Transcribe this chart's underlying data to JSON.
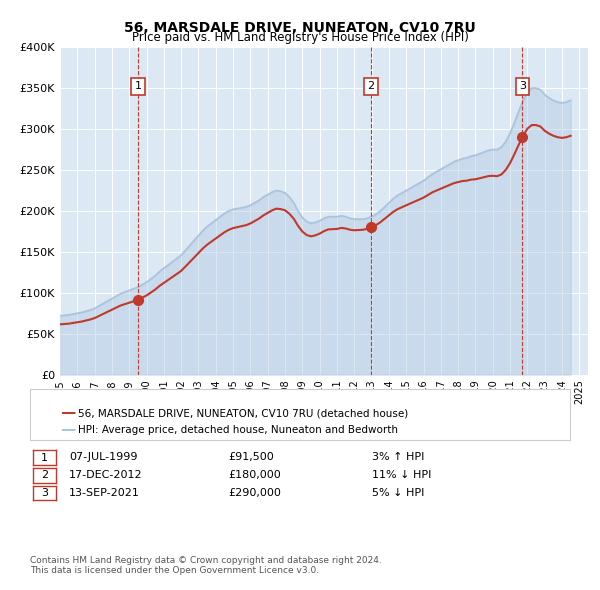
{
  "title": "56, MARSDALE DRIVE, NUNEATON, CV10 7RU",
  "subtitle": "Price paid vs. HM Land Registry's House Price Index (HPI)",
  "hpi_color": "#aac4dd",
  "price_color": "#c0392b",
  "background_color": "#dce9f5",
  "plot_bg": "#dce9f5",
  "ylim": [
    0,
    400000
  ],
  "yticks": [
    0,
    50000,
    100000,
    150000,
    200000,
    250000,
    300000,
    350000,
    400000
  ],
  "ytick_labels": [
    "£0",
    "£50K",
    "£100K",
    "£150K",
    "£200K",
    "£250K",
    "£300K",
    "£350K",
    "£400K"
  ],
  "xlim_start": 1995.0,
  "xlim_end": 2025.5,
  "sale_dates": [
    1999.52,
    2012.96,
    2021.71
  ],
  "sale_prices": [
    91500,
    180000,
    290000
  ],
  "sale_labels": [
    "1",
    "2",
    "3"
  ],
  "legend_price_label": "56, MARSDALE DRIVE, NUNEATON, CV10 7RU (detached house)",
  "legend_hpi_label": "HPI: Average price, detached house, Nuneaton and Bedworth",
  "table_rows": [
    {
      "num": "1",
      "date": "07-JUL-1999",
      "price": "£91,500",
      "change": "3% ↑ HPI"
    },
    {
      "num": "2",
      "date": "17-DEC-2012",
      "price": "£180,000",
      "change": "11% ↓ HPI"
    },
    {
      "num": "3",
      "date": "13-SEP-2021",
      "price": "£290,000",
      "change": "5% ↓ HPI"
    }
  ],
  "footer": "Contains HM Land Registry data © Crown copyright and database right 2024.\nThis data is licensed under the Open Government Licence v3.0.",
  "hpi_data_x": [
    1995.0,
    1995.25,
    1995.5,
    1995.75,
    1996.0,
    1996.25,
    1996.5,
    1996.75,
    1997.0,
    1997.25,
    1997.5,
    1997.75,
    1998.0,
    1998.25,
    1998.5,
    1998.75,
    1999.0,
    1999.25,
    1999.5,
    1999.75,
    2000.0,
    2000.25,
    2000.5,
    2000.75,
    2001.0,
    2001.25,
    2001.5,
    2001.75,
    2002.0,
    2002.25,
    2002.5,
    2002.75,
    2003.0,
    2003.25,
    2003.5,
    2003.75,
    2004.0,
    2004.25,
    2004.5,
    2004.75,
    2005.0,
    2005.25,
    2005.5,
    2005.75,
    2006.0,
    2006.25,
    2006.5,
    2006.75,
    2007.0,
    2007.25,
    2007.5,
    2007.75,
    2008.0,
    2008.25,
    2008.5,
    2008.75,
    2009.0,
    2009.25,
    2009.5,
    2009.75,
    2010.0,
    2010.25,
    2010.5,
    2010.75,
    2011.0,
    2011.25,
    2011.5,
    2011.75,
    2012.0,
    2012.25,
    2012.5,
    2012.75,
    2013.0,
    2013.25,
    2013.5,
    2013.75,
    2014.0,
    2014.25,
    2014.5,
    2014.75,
    2015.0,
    2015.25,
    2015.5,
    2015.75,
    2016.0,
    2016.25,
    2016.5,
    2016.75,
    2017.0,
    2017.25,
    2017.5,
    2017.75,
    2018.0,
    2018.25,
    2018.5,
    2018.75,
    2019.0,
    2019.25,
    2019.5,
    2019.75,
    2020.0,
    2020.25,
    2020.5,
    2020.75,
    2021.0,
    2021.25,
    2021.5,
    2021.75,
    2022.0,
    2022.25,
    2022.5,
    2022.75,
    2023.0,
    2023.25,
    2023.5,
    2023.75,
    2024.0,
    2024.25,
    2024.5
  ],
  "hpi_data_y": [
    72000,
    72500,
    73000,
    74000,
    75000,
    76000,
    77500,
    79000,
    81000,
    84000,
    87000,
    90000,
    93000,
    96000,
    99000,
    101000,
    103000,
    105000,
    107000,
    110000,
    113000,
    117000,
    121000,
    126000,
    130000,
    134000,
    138000,
    142000,
    146000,
    152000,
    158000,
    164000,
    170000,
    176000,
    181000,
    185000,
    189000,
    193000,
    197000,
    200000,
    202000,
    203000,
    204000,
    205000,
    207000,
    210000,
    213000,
    217000,
    220000,
    223000,
    225000,
    224000,
    222000,
    217000,
    210000,
    200000,
    192000,
    187000,
    185000,
    186000,
    188000,
    191000,
    193000,
    193000,
    193000,
    194000,
    193000,
    191000,
    190000,
    190000,
    190000,
    191000,
    193000,
    196000,
    200000,
    205000,
    210000,
    215000,
    219000,
    222000,
    225000,
    228000,
    231000,
    234000,
    237000,
    241000,
    245000,
    248000,
    251000,
    254000,
    257000,
    260000,
    262000,
    264000,
    265000,
    267000,
    268000,
    270000,
    272000,
    274000,
    275000,
    275000,
    278000,
    285000,
    295000,
    308000,
    322000,
    335000,
    345000,
    350000,
    350000,
    348000,
    342000,
    338000,
    335000,
    333000,
    332000,
    333000,
    335000
  ]
}
